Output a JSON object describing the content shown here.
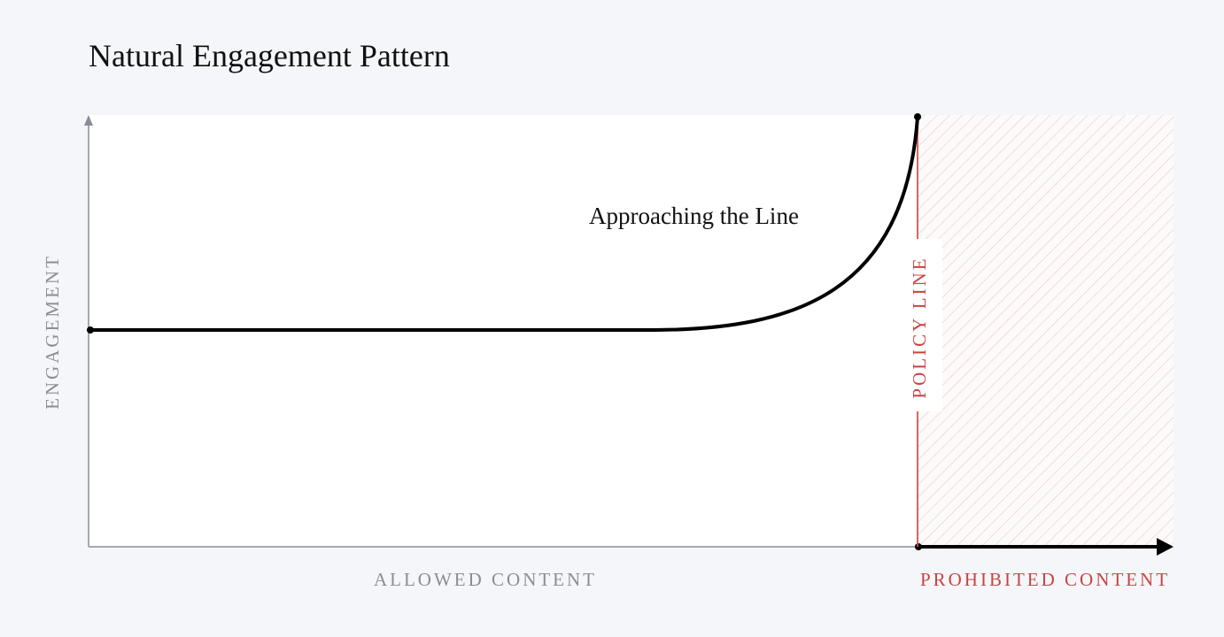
{
  "title": "Natural Engagement Pattern",
  "annotation": "Approaching the Line",
  "y_axis_label": "ENGAGEMENT",
  "policy_line_label": "POLICY LINE",
  "x_axis_labels": {
    "allowed": "ALLOWED CONTENT",
    "prohibited": "PROHIBITED CONTENT"
  }
}
